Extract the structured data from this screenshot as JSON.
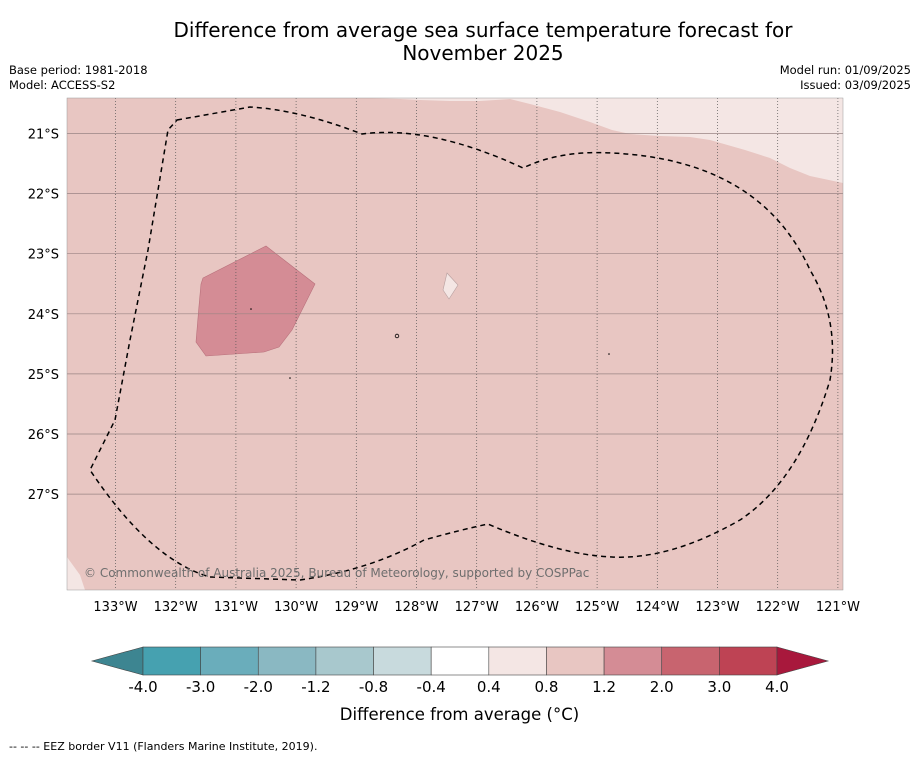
{
  "header": {
    "title_line1": "Difference from average sea surface temperature forecast for",
    "title_line2": "November 2025",
    "base_period": "Base period: 1981-2018",
    "model": "Model: ACCESS-S2",
    "model_run": "Model run: 01/09/2025",
    "issued": "Issued: 03/09/2025"
  },
  "map": {
    "lon_labels": [
      "133°W",
      "132°W",
      "131°W",
      "130°W",
      "129°W",
      "128°W",
      "127°W",
      "126°W",
      "125°W",
      "124°W",
      "123°W",
      "122°W",
      "121°W"
    ],
    "lat_labels": [
      "21°S",
      "22°S",
      "23°S",
      "24°S",
      "25°S",
      "26°S",
      "27°S"
    ],
    "copyright": "© Commonwealth of Australia 2025, Bureau of Meteorology, supported by COSPPac",
    "colors": {
      "background_anomaly": "#e8c6c2",
      "warm_patch": "#d48c95",
      "light_patch": "#f4e6e4",
      "eez_line": "#000000"
    }
  },
  "colorbar": {
    "tick_labels": [
      "-4.0",
      "-3.0",
      "-2.0",
      "-1.2",
      "-0.8",
      "-0.4",
      "0.4",
      "0.8",
      "1.2",
      "2.0",
      "3.0",
      "4.0"
    ],
    "colors": [
      "#3d8591",
      "#46a1b0",
      "#6aadbb",
      "#8ab8c2",
      "#a8c8cd",
      "#c8dadd",
      "#ffffff",
      "#f4e6e4",
      "#e8c6c2",
      "#d48c95",
      "#c8646f",
      "#be4354",
      "#a8183c"
    ],
    "label": "Difference from average (°C)"
  },
  "footnote": "--  --  -- EEZ border V11 (Flanders Marine Institute, 2019)."
}
